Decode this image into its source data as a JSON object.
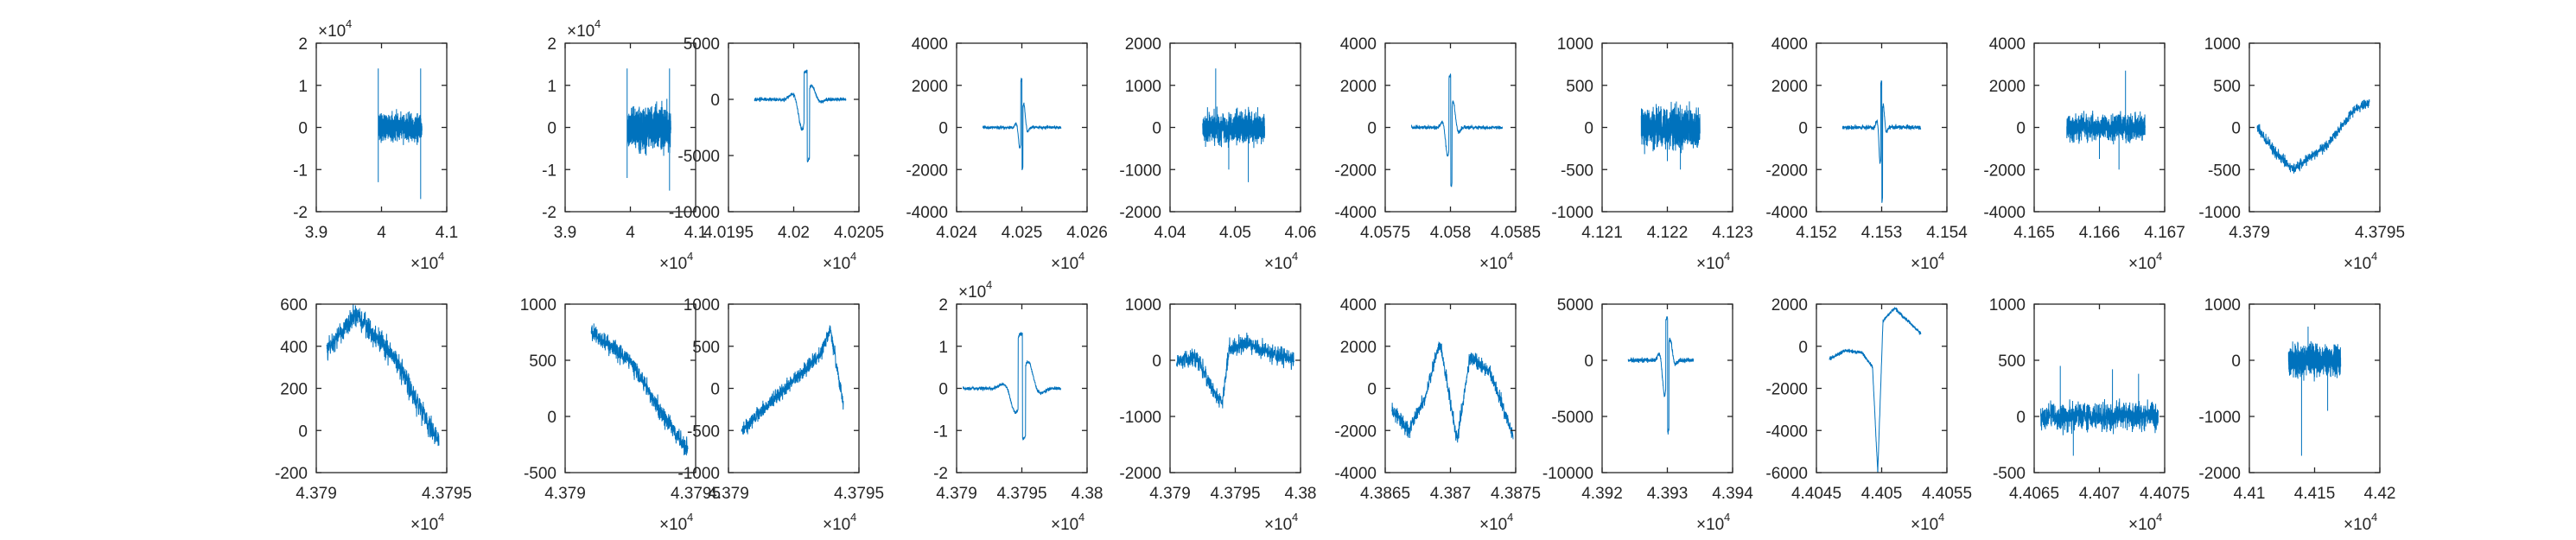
{
  "figure": {
    "colors": {
      "line": "#0072BD",
      "axes": "#262626",
      "background": "#ffffff"
    }
  },
  "chart_data": [
    {
      "type": "line",
      "xlim": [
        39000,
        41000
      ],
      "ylim": [
        -20000,
        20000
      ],
      "xticks": [
        "3.9",
        "4",
        "4.1"
      ],
      "yticks": [
        "-2",
        "-1",
        "0",
        "1",
        "2"
      ],
      "xexp": "4",
      "yexp": "4",
      "grid": false,
      "series": [
        {
          "style": "noise_burst",
          "x_range": [
            39950,
            40620
          ],
          "y_spread": 3000,
          "spikes": [
            [
              39950,
              14000
            ],
            [
              39950,
              -13000
            ],
            [
              40600,
              14000
            ],
            [
              40600,
              -17000
            ]
          ]
        }
      ]
    },
    {
      "type": "line",
      "xlim": [
        39000,
        41000
      ],
      "ylim": [
        -20000,
        20000
      ],
      "xticks": [
        "3.9",
        "4",
        "4.1"
      ],
      "yticks": [
        "-2",
        "-1",
        "0",
        "1",
        "2"
      ],
      "xexp": "4",
      "yexp": "4",
      "grid": false,
      "series": [
        {
          "style": "noise_burst",
          "x_range": [
            39950,
            40620
          ],
          "y_spread": 4500,
          "spikes": [
            [
              39950,
              14000
            ],
            [
              39950,
              -12000
            ],
            [
              40600,
              14000
            ],
            [
              40600,
              -15000
            ]
          ]
        }
      ]
    },
    {
      "type": "line",
      "xlim": [
        40195,
        40205
      ],
      "ylim": [
        -10000,
        5000
      ],
      "xticks": [
        "4.0195",
        "4.02",
        "4.0205"
      ],
      "yticks": [
        "-10000",
        "-5000",
        "0",
        "5000"
      ],
      "xexp": "4",
      "grid": false,
      "series": [
        {
          "style": "wavelet",
          "x_range": [
            40197,
            40204
          ],
          "center": 40201,
          "amp_pos": 2500,
          "amp_neg": -5500,
          "width": 0.6
        }
      ]
    },
    {
      "type": "line",
      "xlim": [
        40240,
        40260
      ],
      "ylim": [
        -4000,
        4000
      ],
      "xticks": [
        "4.024",
        "4.025",
        "4.026"
      ],
      "yticks": [
        "-4000",
        "-2000",
        "0",
        "2000",
        "4000"
      ],
      "xexp": "4",
      "grid": false,
      "series": [
        {
          "style": "wavelet",
          "x_range": [
            40244,
            40256
          ],
          "center": 40250,
          "amp_pos": 2300,
          "amp_neg": -2000,
          "width": 0.5
        }
      ]
    },
    {
      "type": "line",
      "xlim": [
        40400,
        40600
      ],
      "ylim": [
        -2000,
        2000
      ],
      "xticks": [
        "4.04",
        "4.05",
        "4.06"
      ],
      "yticks": [
        "-2000",
        "-1000",
        "0",
        "1000",
        "2000"
      ],
      "xexp": "4",
      "grid": false,
      "series": [
        {
          "style": "noise_burst",
          "x_range": [
            40450,
            40545
          ],
          "y_spread": 350,
          "spikes": [
            [
              40470,
              1400
            ],
            [
              40520,
              -1300
            ],
            [
              40490,
              -1000
            ]
          ]
        }
      ]
    },
    {
      "type": "line",
      "xlim": [
        40575,
        40585
      ],
      "ylim": [
        -4000,
        4000
      ],
      "xticks": [
        "4.0575",
        "4.058",
        "4.0585"
      ],
      "yticks": [
        "-4000",
        "-2000",
        "0",
        "2000",
        "4000"
      ],
      "xexp": "4",
      "grid": false,
      "series": [
        {
          "style": "wavelet",
          "x_range": [
            40577,
            40584
          ],
          "center": 40580,
          "amp_pos": 2500,
          "amp_neg": -2800,
          "width": 0.35
        }
      ]
    },
    {
      "type": "line",
      "xlim": [
        41210,
        41230
      ],
      "ylim": [
        -1000,
        1000
      ],
      "xticks": [
        "4.121",
        "4.122",
        "4.123"
      ],
      "yticks": [
        "-1000",
        "-500",
        "0",
        "500",
        "1000"
      ],
      "xexp": "4",
      "grid": false,
      "series": [
        {
          "style": "noise_burst",
          "x_range": [
            41216,
            41225
          ],
          "y_spread": 230,
          "spikes": [
            [
              41219,
              250
            ],
            [
              41222,
              -500
            ],
            [
              41220,
              -400
            ]
          ]
        }
      ]
    },
    {
      "type": "line",
      "xlim": [
        41520,
        41540
      ],
      "ylim": [
        -4000,
        4000
      ],
      "xticks": [
        "4.152",
        "4.153",
        "4.154"
      ],
      "yticks": [
        "-4000",
        "-2000",
        "0",
        "2000",
        "4000"
      ],
      "xexp": "4",
      "grid": false,
      "series": [
        {
          "style": "wavelet",
          "x_range": [
            41524,
            41536
          ],
          "center": 41530,
          "amp_pos": 2200,
          "amp_neg": -3500,
          "width": 0.4
        }
      ]
    },
    {
      "type": "line",
      "xlim": [
        41650,
        41670
      ],
      "ylim": [
        -4000,
        4000
      ],
      "xticks": [
        "4.165",
        "4.166",
        "4.167"
      ],
      "yticks": [
        "-4000",
        "-2000",
        "0",
        "2000",
        "4000"
      ],
      "xexp": "4",
      "grid": false,
      "series": [
        {
          "style": "noise_burst",
          "x_range": [
            41655,
            41667
          ],
          "y_spread": 600,
          "spikes": [
            [
              41664,
              2700
            ],
            [
              41663,
              -2000
            ],
            [
              41660,
              -1500
            ]
          ]
        }
      ]
    },
    {
      "type": "line",
      "xlim": [
        43790,
        43795
      ],
      "ylim": [
        -1000,
        1000
      ],
      "xticks": [
        "4.379",
        "4.3795"
      ],
      "yticks": [
        "-1000",
        "-500",
        "0",
        "500",
        "1000"
      ],
      "xexp": "4",
      "grid": false,
      "series": [
        {
          "style": "trend",
          "x_range": [
            43790.3,
            43794.6
          ],
          "points": [
            [
              43790.3,
              0
            ],
            [
              43791,
              -300
            ],
            [
              43791.7,
              -500
            ],
            [
              43793,
              -200
            ],
            [
              43794,
              200
            ],
            [
              43794.6,
              300
            ]
          ],
          "noise": 60
        }
      ]
    },
    {
      "type": "line",
      "xlim": [
        43790,
        43795
      ],
      "ylim": [
        -200,
        600
      ],
      "xticks": [
        "4.379",
        "4.3795"
      ],
      "yticks": [
        "-200",
        "0",
        "200",
        "400",
        "600"
      ],
      "xexp": "4",
      "grid": false,
      "series": [
        {
          "style": "trend",
          "x_range": [
            43790.4,
            43794.7
          ],
          "points": [
            [
              43790.4,
              380
            ],
            [
              43791.5,
              550
            ],
            [
              43793,
              350
            ],
            [
              43794,
              100
            ],
            [
              43794.7,
              -50
            ]
          ],
          "noise": 55
        }
      ]
    },
    {
      "type": "line",
      "xlim": [
        43790,
        43795
      ],
      "ylim": [
        -500,
        1000
      ],
      "xticks": [
        "4.379",
        "4.3795"
      ],
      "yticks": [
        "-500",
        "0",
        "500",
        "1000"
      ],
      "xexp": "4",
      "grid": false,
      "series": [
        {
          "style": "trend",
          "x_range": [
            43791,
            43794.7
          ],
          "points": [
            [
              43791,
              750
            ],
            [
              43792.5,
              500
            ],
            [
              43793.5,
              100
            ],
            [
              43794.7,
              -300
            ]
          ],
          "noise": 80
        }
      ]
    },
    {
      "type": "line",
      "xlim": [
        43790,
        43795
      ],
      "ylim": [
        -1000,
        1000
      ],
      "xticks": [
        "4.379",
        "4.3795"
      ],
      "yticks": [
        "-1000",
        "-500",
        "0",
        "500",
        "1000"
      ],
      "xexp": "4",
      "grid": false,
      "series": [
        {
          "style": "trend",
          "x_range": [
            43790.5,
            43794.4
          ],
          "points": [
            [
              43790.5,
              -500
            ],
            [
              43791.5,
              -200
            ],
            [
              43792.5,
              100
            ],
            [
              43793.5,
              400
            ],
            [
              43793.9,
              700
            ],
            [
              43794.4,
              -200
            ]
          ],
          "noise": 90
        }
      ]
    },
    {
      "type": "line",
      "xlim": [
        43790,
        43800
      ],
      "ylim": [
        -20000,
        20000
      ],
      "xticks": [
        "4.379",
        "4.3795",
        "4.38"
      ],
      "yticks": [
        "-2",
        "-1",
        "0",
        "1",
        "2"
      ],
      "xexp": "4",
      "yexp": "4",
      "grid": false,
      "series": [
        {
          "style": "wavelet",
          "x_range": [
            43790.5,
            43798
          ],
          "center": 43795,
          "amp_pos": 13000,
          "amp_neg": -12000,
          "width": 0.8
        }
      ]
    },
    {
      "type": "line",
      "xlim": [
        43790,
        43800
      ],
      "ylim": [
        -2000,
        1000
      ],
      "xticks": [
        "4.379",
        "4.3795",
        "4.38"
      ],
      "yticks": [
        "-2000",
        "-1000",
        "0",
        "1000"
      ],
      "xexp": "4",
      "grid": false,
      "series": [
        {
          "style": "trend",
          "x_range": [
            43790.5,
            43799.5
          ],
          "points": [
            [
              43790.5,
              0
            ],
            [
              43792,
              50
            ],
            [
              43794,
              -800
            ],
            [
              43794.5,
              200
            ],
            [
              43796,
              300
            ],
            [
              43798,
              100
            ],
            [
              43799.5,
              0
            ]
          ],
          "noise": 150
        }
      ]
    },
    {
      "type": "line",
      "xlim": [
        43865,
        43875
      ],
      "ylim": [
        -4000,
        4000
      ],
      "xticks": [
        "4.3865",
        "4.387",
        "4.3875"
      ],
      "yticks": [
        "-4000",
        "-2000",
        "0",
        "2000",
        "4000"
      ],
      "xexp": "4",
      "grid": false,
      "series": [
        {
          "style": "trend",
          "x_range": [
            43865.5,
            43874.8
          ],
          "points": [
            [
              43865.5,
              -1000
            ],
            [
              43866.8,
              -2000
            ],
            [
              43868,
              -500
            ],
            [
              43869.2,
              2200
            ],
            [
              43870.5,
              -2500
            ],
            [
              43871.5,
              1500
            ],
            [
              43873,
              800
            ],
            [
              43874.8,
              -2200
            ]
          ],
          "noise": 350
        }
      ]
    },
    {
      "type": "line",
      "xlim": [
        43920,
        43940
      ],
      "ylim": [
        -10000,
        5000
      ],
      "xticks": [
        "4.392",
        "4.393",
        "4.394"
      ],
      "yticks": [
        "-10000",
        "-5000",
        "0",
        "5000"
      ],
      "xexp": "4",
      "grid": false,
      "series": [
        {
          "style": "wavelet",
          "x_range": [
            43924,
            43934
          ],
          "center": 43930,
          "amp_pos": 3800,
          "amp_neg": -6500,
          "width": 0.7
        }
      ]
    },
    {
      "type": "line",
      "xlim": [
        44045,
        44055
      ],
      "ylim": [
        -6000,
        2000
      ],
      "xticks": [
        "4.4045",
        "4.405",
        "4.4055"
      ],
      "yticks": [
        "-6000",
        "-4000",
        "-2000",
        "0",
        "2000"
      ],
      "xexp": "4",
      "grid": false,
      "series": [
        {
          "style": "trend",
          "x_range": [
            44046,
            44053
          ],
          "points": [
            [
              44046,
              -600
            ],
            [
              44047.2,
              -200
            ],
            [
              44048.5,
              -300
            ],
            [
              44049.3,
              -1000
            ],
            [
              44049.7,
              -6000
            ],
            [
              44050.1,
              1200
            ],
            [
              44051,
              1800
            ],
            [
              44053,
              600
            ]
          ],
          "noise": 80
        }
      ]
    },
    {
      "type": "line",
      "xlim": [
        44065,
        44075
      ],
      "ylim": [
        -500,
        1000
      ],
      "xticks": [
        "4.4065",
        "4.407",
        "4.4075"
      ],
      "yticks": [
        "-500",
        "0",
        "500",
        "1000"
      ],
      "xexp": "4",
      "grid": false,
      "series": [
        {
          "style": "noise_burst",
          "x_range": [
            44065.5,
            44074.5
          ],
          "y_spread": 120,
          "spikes": [
            [
              44067,
              450
            ],
            [
              44071,
              420
            ],
            [
              44068,
              -350
            ],
            [
              44073,
              380
            ]
          ]
        }
      ]
    },
    {
      "type": "line",
      "xlim": [
        44100,
        44200
      ],
      "ylim": [
        -2000,
        1000
      ],
      "xticks": [
        "4.41",
        "4.415",
        "4.42"
      ],
      "yticks": [
        "-2000",
        "-1000",
        "0",
        "1000"
      ],
      "xexp": "4",
      "grid": false,
      "series": [
        {
          "style": "noise_burst",
          "x_range": [
            44130,
            44170
          ],
          "y_spread": 250,
          "spikes": [
            [
              44140,
              -1700
            ],
            [
              44145,
              600
            ],
            [
              44160,
              -900
            ]
          ]
        }
      ]
    }
  ]
}
